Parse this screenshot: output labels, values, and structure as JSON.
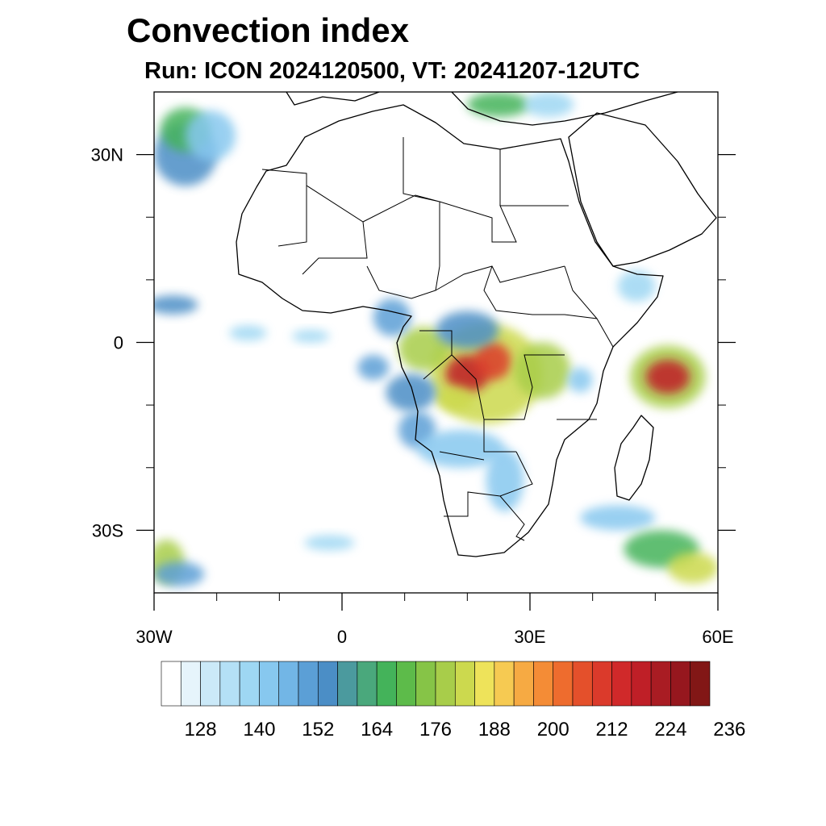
{
  "title": "Convection index",
  "subtitle": "Run: ICON 2024120500,  VT: 20241207-12UTC",
  "map": {
    "lon_range": [
      -30,
      60
    ],
    "lat_range": [
      -40,
      40
    ],
    "x_ticks": [
      {
        "lon": -30,
        "label": "30W"
      },
      {
        "lon": 0,
        "label": "0"
      },
      {
        "lon": 30,
        "label": "30E"
      },
      {
        "lon": 60,
        "label": "60E"
      }
    ],
    "y_ticks": [
      {
        "lat": 30,
        "label": "30N"
      },
      {
        "lat": 0,
        "label": "0"
      },
      {
        "lat": -30,
        "label": "30S"
      }
    ],
    "minor_lon_ticks": [
      -20,
      -10,
      10,
      20,
      40,
      50
    ],
    "minor_lat_ticks": [
      20,
      10,
      -10,
      -20
    ]
  },
  "colorbar": {
    "colors": [
      "#ffffff",
      "#e6f4fb",
      "#cbe9f8",
      "#b4e0f6",
      "#9ed7f3",
      "#87c8ef",
      "#72b6e6",
      "#5b9fd6",
      "#4b8ec6",
      "#4b9a9e",
      "#4aa87c",
      "#44b35a",
      "#5dbb4a",
      "#86c447",
      "#a8cd4a",
      "#ccd94e",
      "#eee35a",
      "#f6ca52",
      "#f6aa43",
      "#f48c36",
      "#ee6c2e",
      "#e4502b",
      "#db3a2b",
      "#d0292a",
      "#bf1f27",
      "#a91c23",
      "#96171e",
      "#821716"
    ],
    "labels": [
      "128",
      "140",
      "152",
      "164",
      "176",
      "188",
      "200",
      "212",
      "224",
      "236"
    ]
  },
  "convection_cells": [
    {
      "lon": 23,
      "lat": -5,
      "rlon": 9,
      "rlat": 8,
      "level": 0.55
    },
    {
      "lon": 20,
      "lat": -5,
      "rlon": 3.5,
      "rlat": 3,
      "level": 0.88
    },
    {
      "lon": 24,
      "lat": -3,
      "rlon": 3,
      "rlat": 3,
      "level": 0.8
    },
    {
      "lon": 13,
      "lat": -1,
      "rlon": 4,
      "rlat": 3.5,
      "level": 0.5
    },
    {
      "lon": 18,
      "lat": -9,
      "rlon": 3,
      "rlat": 2,
      "level": 0.55
    },
    {
      "lon": 32,
      "lat": -4.5,
      "rlon": 4.5,
      "rlat": 4.5,
      "level": 0.5
    },
    {
      "lon": 52,
      "lat": -5.5,
      "rlon": 6,
      "rlat": 5,
      "level": 0.5
    },
    {
      "lon": 52,
      "lat": -5.5,
      "rlon": 3.5,
      "rlat": 2.7,
      "level": 0.88
    },
    {
      "lon": 20,
      "lat": 2,
      "rlon": 5,
      "rlat": 3,
      "level": 0.3
    },
    {
      "lon": 11,
      "lat": -8,
      "rlon": 4,
      "rlat": 3,
      "level": 0.3
    },
    {
      "lon": 12,
      "lat": -14,
      "rlon": 3,
      "rlat": 3,
      "level": 0.25
    },
    {
      "lon": 19,
      "lat": -17,
      "rlon": 7,
      "rlat": 3,
      "level": 0.2
    },
    {
      "lon": 26,
      "lat": -22,
      "rlon": 3,
      "rlat": 5,
      "level": 0.2
    },
    {
      "lon": 8,
      "lat": 4,
      "rlon": 3,
      "rlat": 3,
      "level": 0.25
    },
    {
      "lon": 5,
      "lat": -4,
      "rlon": 2.5,
      "rlat": 2,
      "level": 0.25
    },
    {
      "lon": -25,
      "lat": 30,
      "rlon": 5,
      "rlat": 5,
      "level": 0.3
    },
    {
      "lon": -25,
      "lat": 34,
      "rlon": 4,
      "rlat": 3.5,
      "level": 0.4
    },
    {
      "lon": -21,
      "lat": 33,
      "rlon": 4,
      "rlat": 4,
      "level": 0.2
    },
    {
      "lon": 25,
      "lat": 38,
      "rlon": 5,
      "rlat": 2,
      "level": 0.4
    },
    {
      "lon": 33,
      "lat": 38,
      "rlon": 4,
      "rlat": 2,
      "level": 0.15
    },
    {
      "lon": -27,
      "lat": 6,
      "rlon": 4,
      "rlat": 1.5,
      "level": 0.3
    },
    {
      "lon": -15,
      "lat": 1.5,
      "rlon": 3,
      "rlat": 1.2,
      "level": 0.15
    },
    {
      "lon": -5,
      "lat": 1,
      "rlon": 3,
      "rlat": 1,
      "level": 0.15
    },
    {
      "lon": -28,
      "lat": -35,
      "rlon": 2.8,
      "rlat": 3.5,
      "level": 0.5
    },
    {
      "lon": -26,
      "lat": -37,
      "rlon": 4,
      "rlat": 2,
      "level": 0.25
    },
    {
      "lon": 44,
      "lat": -28,
      "rlon": 6,
      "rlat": 2,
      "level": 0.2
    },
    {
      "lon": 51,
      "lat": -33,
      "rlon": 6,
      "rlat": 3,
      "level": 0.4
    },
    {
      "lon": 56,
      "lat": -36,
      "rlon": 4,
      "rlat": 2.5,
      "level": 0.55
    },
    {
      "lon": -2,
      "lat": -32,
      "rlon": 4,
      "rlat": 1.2,
      "level": 0.15
    },
    {
      "lon": 47,
      "lat": 9,
      "rlon": 3,
      "rlat": 2.5,
      "level": 0.15
    },
    {
      "lon": 38,
      "lat": -6,
      "rlon": 2,
      "rlat": 2,
      "level": 0.2
    }
  ]
}
